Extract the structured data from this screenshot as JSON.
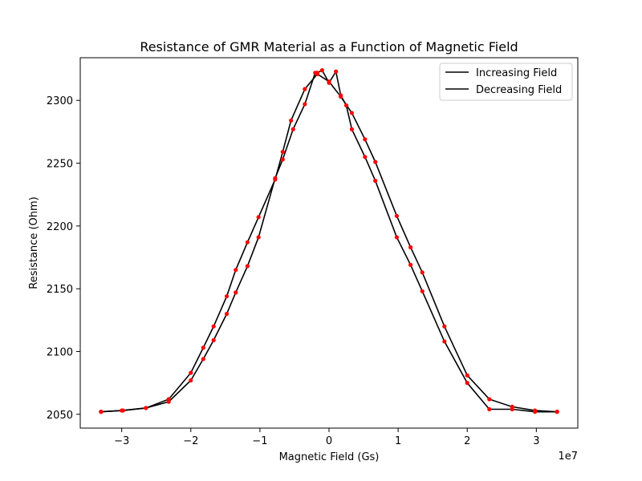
{
  "chart_data": {
    "type": "line",
    "title": "Resistance of GMR Material as a Function of Magnetic Field",
    "xlabel": "Magnetic Field (Gs)",
    "ylabel": "Resistance (Ohm)",
    "x_offset_label": "1e7",
    "xlim": [
      -3.6,
      3.6
    ],
    "ylim": [
      2039,
      2334
    ],
    "x_scale_note": "x values in units of 1e7 Gs",
    "xticks": [
      -3,
      -2,
      -1,
      0,
      1,
      2,
      3
    ],
    "xtick_labels": [
      "−3",
      "−2",
      "−1",
      "0",
      "1",
      "2",
      "3"
    ],
    "yticks": [
      2050,
      2100,
      2150,
      2200,
      2250,
      2300
    ],
    "ytick_labels": [
      "2050",
      "2100",
      "2150",
      "2200",
      "2250",
      "2300"
    ],
    "grid": false,
    "legend_position": "top-right",
    "line_color": "#000000",
    "marker_color": "#ff0000",
    "series": [
      {
        "name": "Increasing Field",
        "x": [
          -3.3,
          -3.0,
          -2.65,
          -2.32,
          -2.0,
          -1.82,
          -1.67,
          -1.48,
          -1.35,
          -1.18,
          -1.02,
          -0.78,
          -0.67,
          -0.55,
          -0.35,
          -0.17,
          0.0,
          0.17,
          0.33,
          0.52,
          0.67,
          0.98,
          1.18,
          1.35,
          1.67,
          2.0,
          2.32,
          2.65,
          2.98,
          3.3
        ],
        "y": [
          2052,
          2053,
          2055,
          2062,
          2083,
          2103,
          2120,
          2144,
          2165,
          2187,
          2207,
          2237,
          2259,
          2284,
          2309,
          2321,
          2315,
          2303,
          2290,
          2269,
          2251,
          2208,
          2183,
          2163,
          2120,
          2081,
          2062,
          2056,
          2053,
          2052
        ]
      },
      {
        "name": "Decreasing Field",
        "x": [
          3.3,
          2.98,
          2.65,
          2.32,
          2.0,
          1.67,
          1.35,
          1.18,
          0.98,
          0.67,
          0.52,
          0.33,
          0.25,
          0.17,
          0.1,
          0.0,
          -0.1,
          -0.17,
          -0.2,
          -0.35,
          -0.52,
          -0.67,
          -0.78,
          -1.02,
          -1.18,
          -1.35,
          -1.48,
          -1.67,
          -1.82,
          -2.0,
          -2.32,
          -2.65,
          -2.98,
          -3.3
        ],
        "y": [
          2052,
          2052,
          2054,
          2054,
          2075,
          2108,
          2148,
          2169,
          2191,
          2236,
          2255,
          2277,
          2296,
          2304,
          2323,
          2314,
          2324,
          2322,
          2322,
          2297,
          2277,
          2253,
          2238,
          2191,
          2168,
          2147,
          2130,
          2109,
          2094,
          2077,
          2060,
          2055,
          2053,
          2052
        ]
      }
    ]
  }
}
